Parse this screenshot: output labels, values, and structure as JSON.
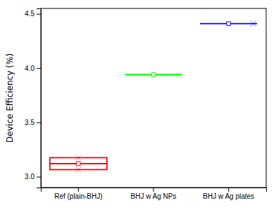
{
  "chart_data": {
    "type": "mean",
    "categories": [
      "Ref (plain-BHJ)",
      "BHJ w Ag NPs",
      "BHJ w Ag plates"
    ],
    "values": [
      3.12,
      3.94,
      4.41
    ],
    "errors": [
      0.055,
      null,
      null
    ],
    "colors": [
      "red",
      "lime",
      "blue"
    ],
    "ylabel": "Device Efficiency (%)",
    "ylim": [
      2.9,
      4.55
    ],
    "yticks": [
      {
        "value": 3.0,
        "label": "3.0"
      },
      3.5,
      {
        "value": 4.0,
        "label": "4.0"
      },
      4.5
    ],
    "grid": false
  }
}
